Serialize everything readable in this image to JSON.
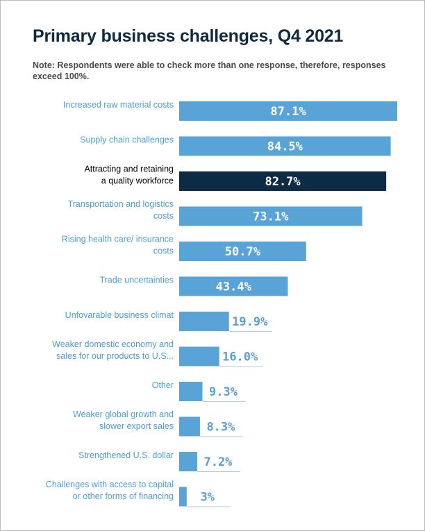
{
  "title": "Primary business challenges, Q4 2021",
  "note": "Note: Respondents were able to check more than one response, therefore, responses exceed 100%.",
  "colors": {
    "bar": "#5aa3d6",
    "highlight": "#0d2b45",
    "label": "#4a9fd6",
    "value_outside": "#5a9fd0",
    "underline": "#a9cde8"
  },
  "chart_data": {
    "type": "bar",
    "orientation": "horizontal",
    "categories": [
      [
        "Increased raw material costs"
      ],
      [
        "Supply chain challenges"
      ],
      [
        "Attracting  and  retaining",
        "a quality workforce"
      ],
      [
        "Transportation and logistics",
        "costs"
      ],
      [
        "Rising health care/ insurance",
        "costs"
      ],
      [
        "Trade uncertainties"
      ],
      [
        "Unfovarable business climat"
      ],
      [
        "Weaker domestic economy and",
        "sales for our products to U.S..."
      ],
      [
        "Other"
      ],
      [
        "Weaker global growth and",
        "slower export sales"
      ],
      [
        "Strengthened U.S. dollar"
      ],
      [
        "Challenges with access to capital",
        "or other forms of financing"
      ]
    ],
    "values": [
      87.1,
      84.5,
      82.7,
      73.1,
      50.7,
      43.4,
      19.9,
      16.0,
      9.3,
      8.3,
      7.2,
      3
    ],
    "value_labels": [
      "87.1%",
      "84.5%",
      "82.7%",
      "73.1%",
      "50.7%",
      "43.4%",
      "19.9%",
      "16.0%",
      "9.3%",
      "8.3%",
      "7.2%",
      "3%"
    ],
    "highlight_index": 2,
    "xlim": [
      0,
      87.1
    ],
    "grid": false,
    "legend": "none"
  }
}
